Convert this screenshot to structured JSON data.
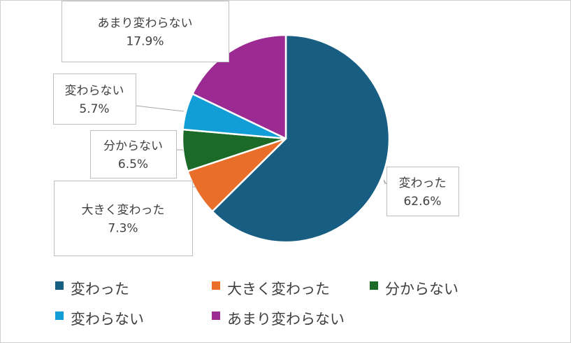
{
  "chart_data": {
    "type": "pie",
    "title": "",
    "slices": [
      {
        "label": "変わった",
        "value": 62.6,
        "display": "62.6%",
        "color": "#175e82"
      },
      {
        "label": "大きく変わった",
        "value": 7.3,
        "display": "7.3%",
        "color": "#e96e2a"
      },
      {
        "label": "分からない",
        "value": 6.5,
        "display": "6.5%",
        "color": "#1b6a28"
      },
      {
        "label": "変わらない",
        "value": 5.7,
        "display": "5.7%",
        "color": "#119dd6"
      },
      {
        "label": "あまり変わらない",
        "value": 17.9,
        "display": "17.9%",
        "color": "#9b2a92"
      }
    ],
    "legend_position": "bottom",
    "start_angle": "12 o'clock, clockwise"
  }
}
